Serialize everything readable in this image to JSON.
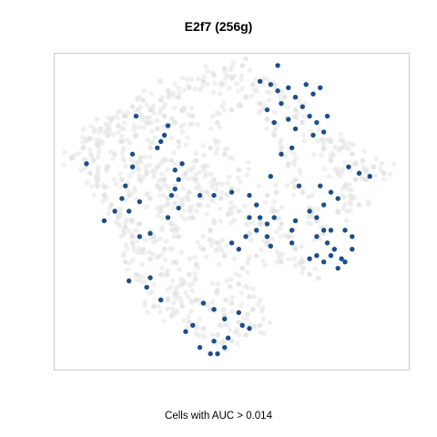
{
  "chart_data": {
    "type": "scatter",
    "title": "E2f7 (256g)",
    "xlabel": "Cells with AUC > 0.014",
    "ylabel": "",
    "grid": false,
    "axes_shown": false,
    "colors": {
      "background_cells": "#e3e3e3",
      "highlighted_cells": "#1d4e89",
      "frame": "#cccccc"
    },
    "series": [
      {
        "role": "background",
        "points": [
          [
            0.05,
            0.67
          ],
          [
            0.08,
            0.7
          ],
          [
            0.1,
            0.73
          ],
          [
            0.12,
            0.71
          ],
          [
            0.15,
            0.74
          ],
          [
            0.18,
            0.77
          ],
          [
            0.2,
            0.8
          ],
          [
            0.22,
            0.83
          ],
          [
            0.25,
            0.85
          ],
          [
            0.27,
            0.82
          ],
          [
            0.3,
            0.85
          ],
          [
            0.32,
            0.88
          ],
          [
            0.35,
            0.86
          ],
          [
            0.38,
            0.89
          ],
          [
            0.42,
            0.91
          ],
          [
            0.45,
            0.93
          ],
          [
            0.47,
            0.9
          ],
          [
            0.48,
            0.95
          ],
          [
            0.5,
            0.92
          ],
          [
            0.53,
            0.96
          ],
          [
            0.13,
            0.76
          ],
          [
            0.16,
            0.79
          ],
          [
            0.19,
            0.72
          ],
          [
            0.23,
            0.74
          ],
          [
            0.26,
            0.78
          ],
          [
            0.29,
            0.76
          ],
          [
            0.31,
            0.8
          ],
          [
            0.34,
            0.78
          ],
          [
            0.36,
            0.82
          ],
          [
            0.39,
            0.8
          ],
          [
            0.1,
            0.62
          ],
          [
            0.12,
            0.58
          ],
          [
            0.14,
            0.55
          ],
          [
            0.16,
            0.52
          ],
          [
            0.18,
            0.48
          ],
          [
            0.2,
            0.45
          ],
          [
            0.22,
            0.42
          ],
          [
            0.24,
            0.46
          ],
          [
            0.21,
            0.55
          ],
          [
            0.19,
            0.6
          ],
          [
            0.11,
            0.66
          ],
          [
            0.15,
            0.64
          ],
          [
            0.17,
            0.68
          ],
          [
            0.24,
            0.66
          ],
          [
            0.27,
            0.7
          ],
          [
            0.29,
            0.64
          ],
          [
            0.31,
            0.6
          ],
          [
            0.33,
            0.66
          ],
          [
            0.35,
            0.72
          ],
          [
            0.37,
            0.62
          ],
          [
            0.27,
            0.54
          ],
          [
            0.3,
            0.5
          ],
          [
            0.33,
            0.46
          ],
          [
            0.35,
            0.42
          ],
          [
            0.39,
            0.48
          ],
          [
            0.41,
            0.52
          ],
          [
            0.43,
            0.56
          ],
          [
            0.45,
            0.6
          ],
          [
            0.47,
            0.54
          ],
          [
            0.49,
            0.49
          ],
          [
            0.44,
            0.44
          ],
          [
            0.46,
            0.4
          ],
          [
            0.48,
            0.36
          ],
          [
            0.42,
            0.38
          ],
          [
            0.4,
            0.33
          ],
          [
            0.38,
            0.3
          ],
          [
            0.36,
            0.27
          ],
          [
            0.34,
            0.24
          ],
          [
            0.3,
            0.3
          ],
          [
            0.27,
            0.35
          ],
          [
            0.32,
            0.22
          ],
          [
            0.36,
            0.2
          ],
          [
            0.4,
            0.22
          ],
          [
            0.44,
            0.19
          ],
          [
            0.48,
            0.17
          ],
          [
            0.52,
            0.15
          ],
          [
            0.5,
            0.21
          ],
          [
            0.46,
            0.25
          ],
          [
            0.52,
            0.27
          ],
          [
            0.55,
            0.23
          ],
          [
            0.38,
            0.15
          ],
          [
            0.42,
            0.13
          ],
          [
            0.46,
            0.11
          ],
          [
            0.5,
            0.09
          ],
          [
            0.54,
            0.11
          ],
          [
            0.58,
            0.14
          ],
          [
            0.56,
            0.19
          ],
          [
            0.53,
            0.32
          ],
          [
            0.57,
            0.36
          ],
          [
            0.55,
            0.43
          ],
          [
            0.52,
            0.5
          ],
          [
            0.5,
            0.57
          ],
          [
            0.52,
            0.63
          ],
          [
            0.48,
            0.68
          ],
          [
            0.44,
            0.7
          ],
          [
            0.4,
            0.66
          ],
          [
            0.46,
            0.78
          ],
          [
            0.5,
            0.82
          ],
          [
            0.54,
            0.86
          ],
          [
            0.56,
            0.9
          ],
          [
            0.58,
            0.84
          ],
          [
            0.6,
            0.79
          ],
          [
            0.62,
            0.74
          ],
          [
            0.64,
            0.7
          ],
          [
            0.66,
            0.65
          ],
          [
            0.68,
            0.6
          ],
          [
            0.7,
            0.56
          ],
          [
            0.72,
            0.51
          ],
          [
            0.74,
            0.47
          ],
          [
            0.76,
            0.43
          ],
          [
            0.62,
            0.9
          ],
          [
            0.65,
            0.86
          ],
          [
            0.68,
            0.82
          ],
          [
            0.7,
            0.78
          ],
          [
            0.73,
            0.74
          ],
          [
            0.76,
            0.7
          ],
          [
            0.78,
            0.66
          ],
          [
            0.8,
            0.62
          ],
          [
            0.82,
            0.58
          ],
          [
            0.84,
            0.54
          ],
          [
            0.6,
            0.55
          ],
          [
            0.62,
            0.5
          ],
          [
            0.64,
            0.46
          ],
          [
            0.66,
            0.42
          ],
          [
            0.68,
            0.38
          ],
          [
            0.7,
            0.34
          ],
          [
            0.72,
            0.3
          ],
          [
            0.64,
            0.34
          ],
          [
            0.6,
            0.4
          ],
          [
            0.58,
            0.46
          ],
          [
            0.78,
            0.72
          ],
          [
            0.81,
            0.7
          ],
          [
            0.84,
            0.68
          ],
          [
            0.87,
            0.66
          ],
          [
            0.9,
            0.64
          ],
          [
            0.93,
            0.62
          ],
          [
            0.88,
            0.6
          ],
          [
            0.85,
            0.6
          ],
          [
            0.86,
            0.52
          ],
          [
            0.8,
            0.5
          ],
          [
            0.2,
            0.34
          ],
          [
            0.23,
            0.3
          ],
          [
            0.26,
            0.26
          ],
          [
            0.28,
            0.2
          ],
          [
            0.33,
            0.17
          ],
          [
            0.22,
            0.4
          ],
          [
            0.25,
            0.38
          ],
          [
            0.28,
            0.42
          ],
          [
            0.31,
            0.38
          ],
          [
            0.34,
            0.34
          ],
          [
            0.4,
            0.6
          ],
          [
            0.42,
            0.64
          ],
          [
            0.38,
            0.56
          ],
          [
            0.36,
            0.52
          ],
          [
            0.34,
            0.58
          ],
          [
            0.32,
            0.54
          ],
          [
            0.29,
            0.58
          ],
          [
            0.24,
            0.6
          ],
          [
            0.26,
            0.62
          ],
          [
            0.22,
            0.64
          ]
        ]
      },
      {
        "role": "highlighted",
        "label": "Cells with AUC > 0.014",
        "points": [
          [
            0.63,
            0.96
          ],
          [
            0.58,
            0.91
          ],
          [
            0.61,
            0.9
          ],
          [
            0.63,
            0.88
          ],
          [
            0.66,
            0.89
          ],
          [
            0.68,
            0.86
          ],
          [
            0.71,
            0.9
          ],
          [
            0.73,
            0.87
          ],
          [
            0.75,
            0.89
          ],
          [
            0.7,
            0.83
          ],
          [
            0.72,
            0.8
          ],
          [
            0.74,
            0.78
          ],
          [
            0.77,
            0.8
          ],
          [
            0.66,
            0.79
          ],
          [
            0.64,
            0.84
          ],
          [
            0.6,
            0.82
          ],
          [
            0.62,
            0.78
          ],
          [
            0.68,
            0.76
          ],
          [
            0.73,
            0.74
          ],
          [
            0.76,
            0.75
          ],
          [
            0.32,
            0.77
          ],
          [
            0.31,
            0.74
          ],
          [
            0.3,
            0.72
          ],
          [
            0.29,
            0.7
          ],
          [
            0.23,
            0.8
          ],
          [
            0.36,
            0.65
          ],
          [
            0.34,
            0.63
          ],
          [
            0.35,
            0.6
          ],
          [
            0.34,
            0.57
          ],
          [
            0.33,
            0.55
          ],
          [
            0.09,
            0.65
          ],
          [
            0.22,
            0.68
          ],
          [
            0.22,
            0.64
          ],
          [
            0.2,
            0.58
          ],
          [
            0.19,
            0.54
          ],
          [
            0.21,
            0.5
          ],
          [
            0.17,
            0.5
          ],
          [
            0.14,
            0.47
          ],
          [
            0.41,
            0.55
          ],
          [
            0.45,
            0.55
          ],
          [
            0.5,
            0.56
          ],
          [
            0.55,
            0.55
          ],
          [
            0.57,
            0.52
          ],
          [
            0.55,
            0.48
          ],
          [
            0.58,
            0.48
          ],
          [
            0.6,
            0.46
          ],
          [
            0.62,
            0.48
          ],
          [
            0.57,
            0.44
          ],
          [
            0.54,
            0.42
          ],
          [
            0.6,
            0.42
          ],
          [
            0.61,
            0.39
          ],
          [
            0.52,
            0.38
          ],
          [
            0.5,
            0.4
          ],
          [
            0.67,
            0.44
          ],
          [
            0.68,
            0.47
          ],
          [
            0.67,
            0.4
          ],
          [
            0.72,
            0.5
          ],
          [
            0.74,
            0.48
          ],
          [
            0.76,
            0.52
          ],
          [
            0.75,
            0.58
          ],
          [
            0.78,
            0.56
          ],
          [
            0.8,
            0.54
          ],
          [
            0.78,
            0.44
          ],
          [
            0.76,
            0.44
          ],
          [
            0.74,
            0.42
          ],
          [
            0.77,
            0.4
          ],
          [
            0.79,
            0.38
          ],
          [
            0.81,
            0.35
          ],
          [
            0.8,
            0.32
          ],
          [
            0.76,
            0.34
          ],
          [
            0.74,
            0.36
          ],
          [
            0.72,
            0.35
          ],
          [
            0.78,
            0.36
          ],
          [
            0.82,
            0.34
          ],
          [
            0.84,
            0.38
          ],
          [
            0.84,
            0.42
          ],
          [
            0.82,
            0.44
          ],
          [
            0.86,
            0.62
          ],
          [
            0.83,
            0.64
          ],
          [
            0.89,
            0.61
          ],
          [
            0.64,
            0.68
          ],
          [
            0.67,
            0.7
          ],
          [
            0.61,
            0.61
          ],
          [
            0.69,
            0.58
          ],
          [
            0.26,
            0.26
          ],
          [
            0.27,
            0.29
          ],
          [
            0.21,
            0.28
          ],
          [
            0.3,
            0.22
          ],
          [
            0.42,
            0.21
          ],
          [
            0.45,
            0.19
          ],
          [
            0.48,
            0.16
          ],
          [
            0.52,
            0.18
          ],
          [
            0.53,
            0.14
          ],
          [
            0.49,
            0.1
          ],
          [
            0.48,
            0.07
          ],
          [
            0.46,
            0.05
          ],
          [
            0.44,
            0.05
          ],
          [
            0.41,
            0.07
          ],
          [
            0.45,
            0.09
          ],
          [
            0.39,
            0.14
          ],
          [
            0.37,
            0.12
          ],
          [
            0.55,
            0.13
          ],
          [
            0.35,
            0.51
          ],
          [
            0.32,
            0.48
          ],
          [
            0.24,
            0.53
          ],
          [
            0.27,
            0.43
          ],
          [
            0.24,
            0.42
          ]
        ]
      }
    ]
  }
}
